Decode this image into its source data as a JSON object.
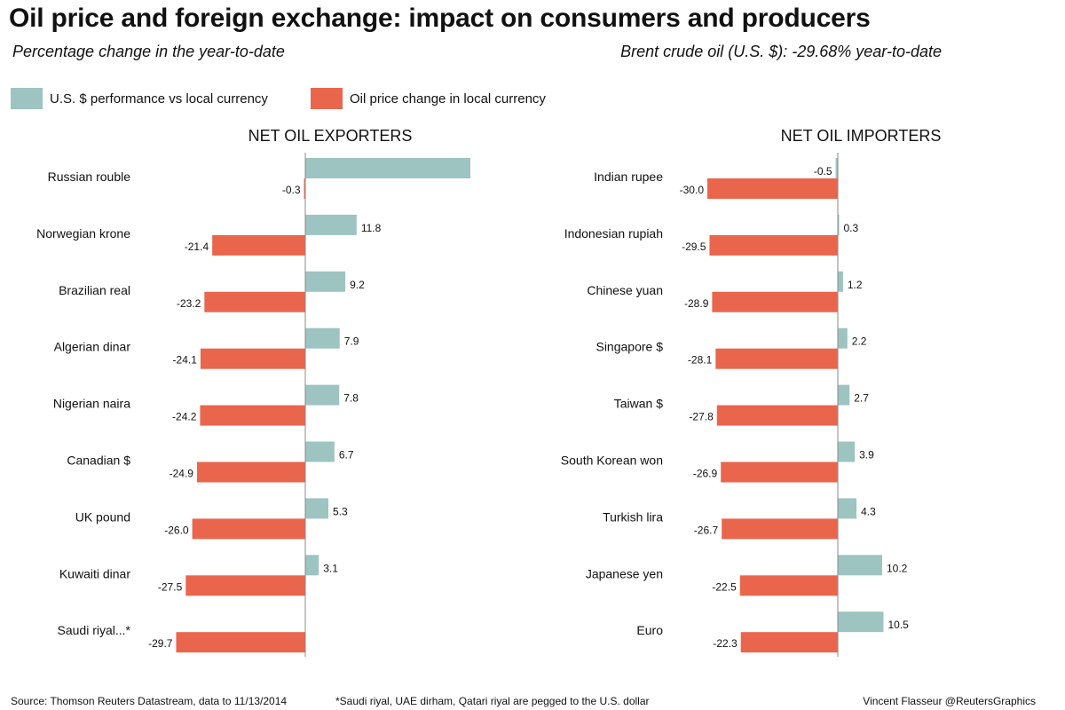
{
  "title": "Oil price and foreign exchange: impact on consumers and producers",
  "subtitle": "Percentage change in the year-to-date",
  "brent_note": "Brent crude oil (U.S. $): -29.68% year-to-date",
  "legend": {
    "usd_label": "U.S. $ performance vs local currency",
    "oil_label": "Oil price change in local currency"
  },
  "colors": {
    "usd": "#9dc4c0",
    "oil": "#e9664d"
  },
  "chart_data": [
    {
      "type": "bar",
      "title": "NET OIL EXPORTERS",
      "categories": [
        "Russian rouble",
        "Norwegian krone",
        "Brazilian real",
        "Algerian dinar",
        "Nigerian naira",
        "Canadian $",
        "UK pound",
        "Kuwaiti dinar",
        "Saudi riyal...*"
      ],
      "series": [
        {
          "name": "U.S. $ performance vs local currency",
          "values": [
            null,
            11.8,
            9.2,
            7.9,
            7.8,
            6.7,
            5.3,
            3.1,
            null
          ]
        },
        {
          "name": "Oil price change in local currency",
          "values": [
            -0.3,
            -21.4,
            -23.2,
            -24.1,
            -24.2,
            -24.9,
            -26.0,
            -27.5,
            -29.7
          ]
        }
      ],
      "usd_labels": [
        "",
        "11.8",
        "9.2",
        "7.9",
        "7.8",
        "6.7",
        "5.3",
        "3.1",
        ""
      ],
      "oil_labels": [
        "-0.3",
        "-21.4",
        "-23.2",
        "-24.1",
        "-24.2",
        "-24.9",
        "-26.0",
        "-27.5",
        "-29.7"
      ]
    },
    {
      "type": "bar",
      "title": "NET OIL IMPORTERS",
      "categories": [
        "Indian rupee",
        "Indonesian rupiah",
        "Chinese yuan",
        "Singapore $",
        "Taiwan $",
        "South Korean won",
        "Turkish lira",
        "Japanese yen",
        "Euro"
      ],
      "series": [
        {
          "name": "U.S. $ performance vs local currency",
          "values": [
            -0.5,
            0.3,
            1.2,
            2.2,
            2.7,
            3.9,
            4.3,
            10.2,
            10.5
          ]
        },
        {
          "name": "Oil price change in local currency",
          "values": [
            -30.0,
            -29.5,
            -28.9,
            -28.1,
            -27.8,
            -26.9,
            -26.7,
            -22.5,
            -22.3
          ]
        }
      ],
      "usd_labels": [
        "-0.5",
        "0.3",
        "1.2",
        "2.2",
        "2.7",
        "3.9",
        "4.3",
        "10.2",
        "10.5"
      ],
      "oil_labels": [
        "-30.0",
        "-29.5",
        "-28.9",
        "-28.1",
        "-27.8",
        "-26.9",
        "-26.7",
        "-22.5",
        "-22.3"
      ]
    }
  ],
  "footer": {
    "source": "Source: Thomson Reuters Datastream, data to 11/13/2014",
    "note": "*Saudi riyal, UAE dirham, Qatari riyal are pegged to the U.S. dollar",
    "credit": "Vincent Flasseur @ReutersGraphics"
  }
}
